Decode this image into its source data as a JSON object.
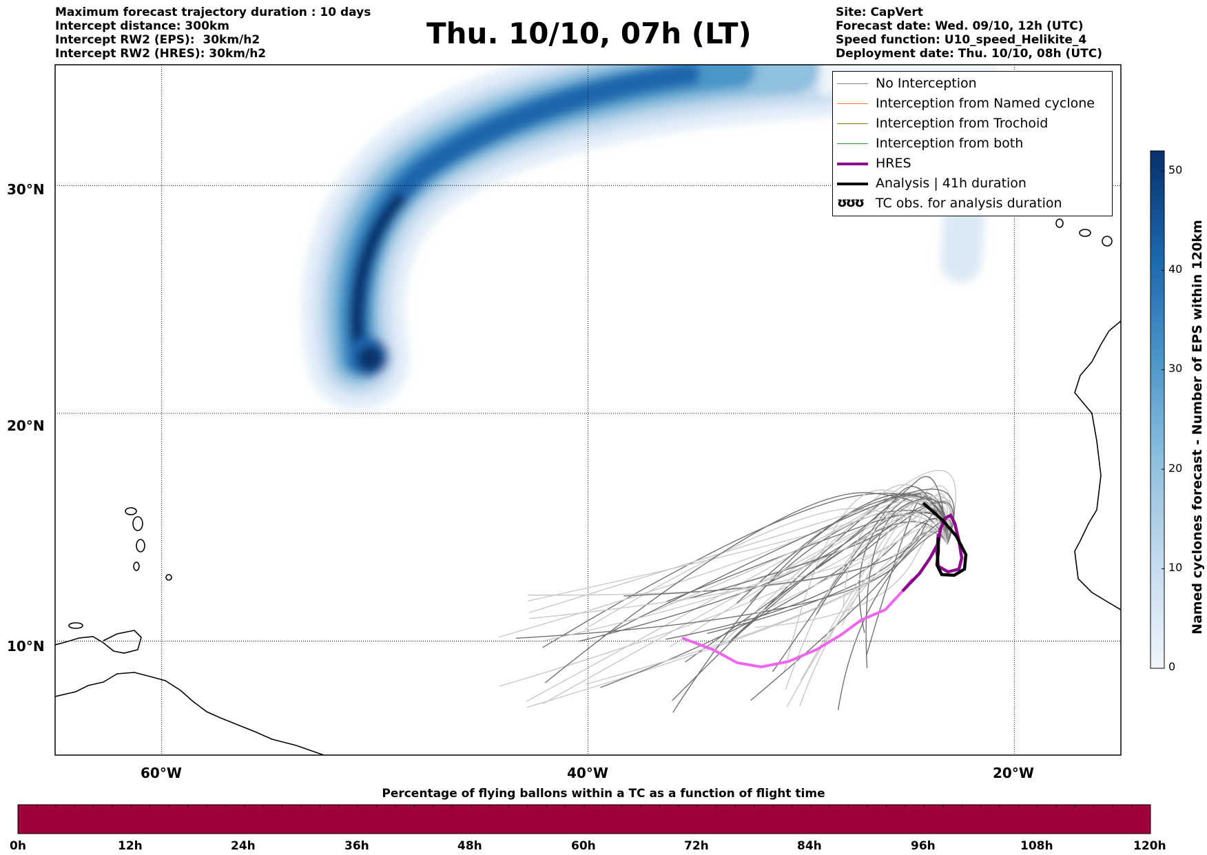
{
  "title": "Thu. 10/10, 07h (LT)",
  "meta_left": [
    "Maximum forecast trajectory duration : 10 days",
    "Intercept distance: 300km",
    "Intercept RW2 (EPS):  30km/h2",
    "Intercept RW2 (HRES): 30km/h2"
  ],
  "meta_right": [
    "Site: CapVert",
    "Forecast date: Wed. 09/10, 12h (UTC)",
    "Speed function: U10_speed_Helikite_4",
    "Deployment date: Thu. 10/10, 08h (UTC)"
  ],
  "map": {
    "lat_labels": [
      "30°N",
      "20°N",
      "10°N"
    ],
    "lon_labels": [
      "60°W",
      "40°W",
      "20°W"
    ],
    "lat_values": [
      30,
      20,
      10
    ],
    "lon_values": [
      -60,
      -40,
      -20
    ],
    "lon_range": [
      -65,
      -15
    ],
    "lat_range": [
      5,
      35.3
    ]
  },
  "legend": {
    "entries": [
      {
        "label": "No Interception",
        "color": "#808080",
        "style": "thin"
      },
      {
        "label": "Interception from Named cyclone",
        "color": "#f07040",
        "style": "thin"
      },
      {
        "label": "Interception from Trochoid",
        "color": "#8b7d2a",
        "style": "thin"
      },
      {
        "label": "Interception from both",
        "color": "#2a9a2a",
        "style": "thin"
      },
      {
        "label": "HRES",
        "color": "#8b0a8b",
        "style": "thick"
      },
      {
        "label": "Analysis | 41h duration",
        "color": "#000000",
        "style": "thick"
      },
      {
        "label": "TC obs. for analysis duration",
        "symbol": "ʊʊʊ",
        "style": "symbol"
      }
    ]
  },
  "colorbar": {
    "title": "Named cyclones forecast - Number of EPS within 120km",
    "ticks": [
      "0",
      "10",
      "20",
      "30",
      "40",
      "50"
    ],
    "min": 0,
    "max": 52,
    "color_low": "#f0f6fc",
    "color_high": "#08306b"
  },
  "flight_bar": {
    "title": "Percentage of flying ballons within a TC as a function of flight time",
    "tick_labels": [
      "0h",
      "12h",
      "24h",
      "36h",
      "48h",
      "60h",
      "72h",
      "84h",
      "96h",
      "108h",
      "120h"
    ],
    "color": "#a0003c"
  }
}
